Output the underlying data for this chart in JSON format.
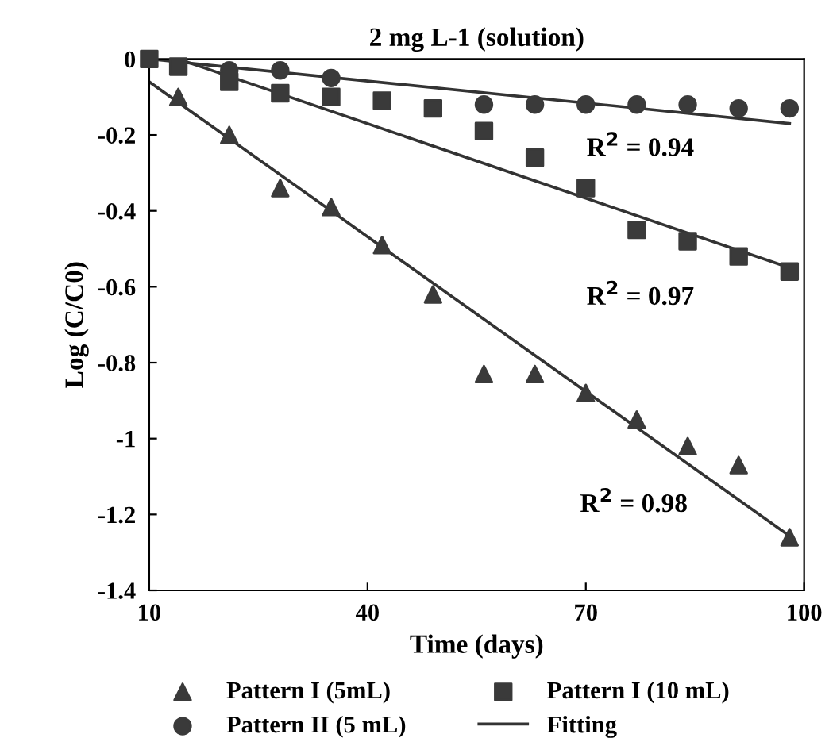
{
  "chart_data": {
    "type": "scatter",
    "title": "2 mg L-1 (solution)",
    "xlabel": "Time (days)",
    "ylabel": "Log (C/C0)",
    "xlim": [
      10,
      100
    ],
    "xticks": [
      10,
      40,
      70,
      100
    ],
    "ylim": [
      -1.4,
      0
    ],
    "yticks": [
      0,
      -0.2,
      -0.4,
      -0.6,
      -0.8,
      -1,
      -1.2,
      -1.4
    ],
    "grid": false,
    "legend": "bottom",
    "series": [
      {
        "name": "Pattern I (5mL)",
        "color": "#3a3a3a",
        "marker": "triangle",
        "x": [
          14,
          21,
          28,
          35,
          42,
          49,
          56,
          63,
          70,
          77,
          84,
          91,
          98
        ],
        "values": [
          -0.1,
          -0.2,
          -0.34,
          -0.39,
          -0.49,
          -0.62,
          -0.83,
          -0.83,
          -0.88,
          -0.95,
          -1.02,
          -1.07,
          -1.26
        ]
      },
      {
        "name": "Pattern II (5 mL)",
        "color": "#3a3a3a",
        "marker": "circle",
        "x": [
          21,
          28,
          35,
          42,
          49,
          56,
          63,
          70,
          77,
          84,
          91,
          98
        ],
        "values": [
          -0.03,
          -0.03,
          -0.05,
          null,
          null,
          -0.12,
          -0.12,
          -0.12,
          -0.12,
          -0.12,
          -0.13,
          -0.13
        ]
      },
      {
        "name": "Pattern I (10 mL)",
        "color": "#3a3a3a",
        "marker": "square",
        "x": [
          10,
          14,
          21,
          28,
          35,
          42,
          49,
          56,
          63,
          70,
          77,
          84,
          91,
          98
        ],
        "values": [
          0,
          -0.02,
          -0.06,
          -0.09,
          -0.1,
          -0.11,
          -0.13,
          -0.19,
          -0.26,
          -0.34,
          -0.45,
          -0.48,
          -0.52,
          -0.56
        ]
      },
      {
        "name": "Fitting",
        "type": "line",
        "color": "#333333",
        "x": [
          10,
          97.5
        ],
        "values": [
          -0.06,
          -1.25
        ]
      },
      {
        "type": "line",
        "color": "#333333",
        "x": [
          10,
          98
        ],
        "values": [
          0,
          -0.17
        ]
      },
      {
        "type": "line",
        "color": "#333333",
        "x": [
          14,
          98
        ],
        "values": [
          0,
          -0.55
        ]
      }
    ],
    "annotations": [
      "R$^{2}$ = 0.94",
      "R$^{2}$ = 0.97",
      "R$^{2}$ = 0.98"
    ]
  }
}
